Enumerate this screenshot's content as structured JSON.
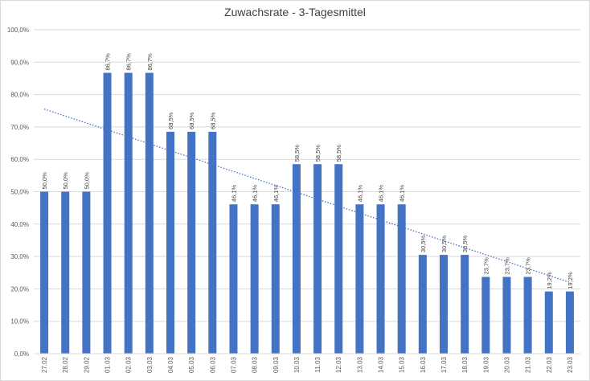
{
  "chart_data": {
    "type": "bar",
    "title": "Zuwachsrate - 3-Tagesmittel",
    "categories": [
      "27.02",
      "28.02",
      "29.02",
      "01.03",
      "02.03",
      "03.03",
      "04.03",
      "05.03",
      "06.03",
      "07.03",
      "08.03",
      "09.03",
      "10.03",
      "11.03",
      "12.03",
      "13.03",
      "14.03",
      "15.03",
      "16.03",
      "17.03",
      "18.03",
      "19.03",
      "20.03",
      "21.03",
      "22.03",
      "23.03"
    ],
    "values": [
      50.0,
      50.0,
      50.0,
      86.7,
      86.7,
      86.7,
      68.5,
      68.5,
      68.5,
      46.1,
      46.1,
      46.1,
      58.5,
      58.5,
      58.5,
      46.1,
      46.1,
      46.1,
      30.5,
      30.5,
      30.5,
      23.7,
      23.7,
      23.7,
      19.2,
      19.2
    ],
    "data_labels": [
      "50,0%",
      "50,0%",
      "50,0%",
      "86,7%",
      "86,7%",
      "86,7%",
      "68,5%",
      "68,5%",
      "68,5%",
      "46,1%",
      "46,1%",
      "46,1%",
      "58,5%",
      "58,5%",
      "58,5%",
      "46,1%",
      "46,1%",
      "46,1%",
      "30,5%",
      "30,5%",
      "30,5%",
      "23,7%",
      "23,7%",
      "23,7%",
      "19,2%",
      "19,2%"
    ],
    "yticks": [
      "0,0%",
      "10,0%",
      "20,0%",
      "30,0%",
      "40,0%",
      "50,0%",
      "60,0%",
      "70,0%",
      "80,0%",
      "90,0%",
      "100,0%"
    ],
    "ylim": [
      0,
      100
    ],
    "grid": true,
    "xlabel": "",
    "ylabel": "",
    "trendline": {
      "type": "linear",
      "style": "dotted",
      "start": 75.5,
      "end": 22.0
    },
    "colors": {
      "bar": "#4472c4",
      "trend": "#4472c4",
      "grid": "#d9d9d9"
    }
  }
}
